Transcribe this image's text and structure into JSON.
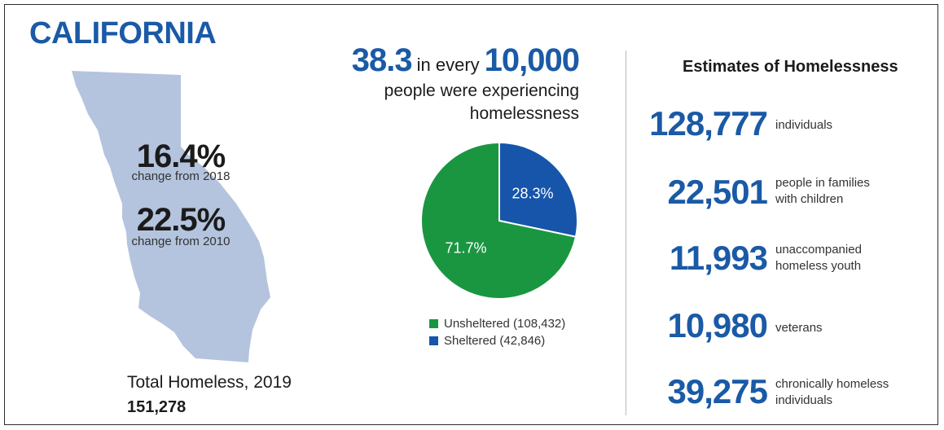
{
  "header": {
    "state": "CALIFORNIA"
  },
  "map_stats": {
    "change_2018_value": "16.4%",
    "change_2018_label": "change from 2018",
    "change_2010_value": "22.5%",
    "change_2010_label": "change from 2010",
    "total_label": "Total Homeless, 2019",
    "total_value": "151,278"
  },
  "rate": {
    "value": "38.3",
    "middle": "in every",
    "base": "10,000",
    "line1": "people were experiencing",
    "line2": "homelessness"
  },
  "colors": {
    "unsheltered": "#1a9641",
    "sheltered": "#1655aa",
    "map": "#b4c4de",
    "accent": "#1a5aa6"
  },
  "chart_data": {
    "type": "pie",
    "slices": [
      {
        "label": "Unsheltered",
        "count": "108,432",
        "value": 71.7,
        "display": "71.7%",
        "color": "#1a9641"
      },
      {
        "label": "Sheltered",
        "count": "42,846",
        "value": 28.3,
        "display": "28.3%",
        "color": "#1655aa"
      }
    ],
    "legend": [
      "Unsheltered (108,432)",
      "Sheltered (42,846)"
    ]
  },
  "estimates": {
    "title": "Estimates of Homelessness",
    "items": [
      {
        "number": "128,777",
        "desc1": "individuals",
        "desc2": ""
      },
      {
        "number": "22,501",
        "desc1": "people in families",
        "desc2": "with children"
      },
      {
        "number": "11,993",
        "desc1": "unaccompanied",
        "desc2": "homeless youth"
      },
      {
        "number": "10,980",
        "desc1": "veterans",
        "desc2": ""
      },
      {
        "number": "39,275",
        "desc1": "chronically homeless",
        "desc2": "individuals"
      }
    ]
  }
}
